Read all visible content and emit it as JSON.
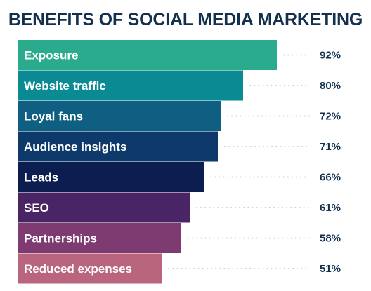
{
  "chart_data": {
    "type": "bar",
    "orientation": "horizontal",
    "title": "BENEFITS OF SOCIAL MEDIA MARKETING",
    "categories": [
      "Exposure",
      "Website traffic",
      "Loyal fans",
      "Audience insights",
      "Leads",
      "SEO",
      "Partnerships",
      "Reduced expenses"
    ],
    "values": [
      92,
      80,
      72,
      71,
      66,
      61,
      58,
      51
    ],
    "value_labels": [
      "92%",
      "80%",
      "72%",
      "71%",
      "66%",
      "61%",
      "58%",
      "51%"
    ],
    "colors": [
      "#2bab8d",
      "#0a8a93",
      "#0e5f82",
      "#0d3a6a",
      "#0c1e4f",
      "#4a2566",
      "#7d3b72",
      "#b9657d"
    ],
    "xlim": [
      0,
      100
    ],
    "grid": false,
    "legend": "none"
  }
}
